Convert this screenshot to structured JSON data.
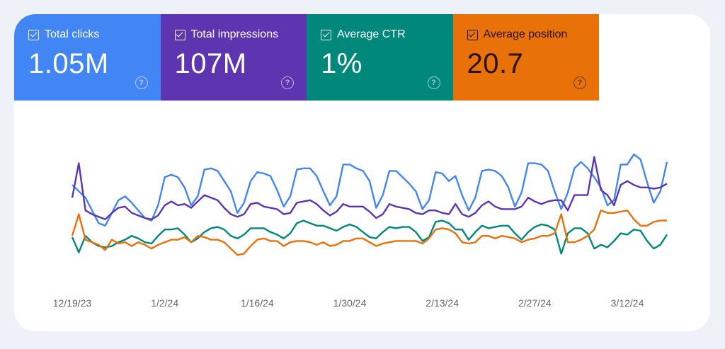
{
  "metrics": [
    {
      "label": "Total clicks",
      "value": "1.05M",
      "color": "#4285f4",
      "text_color": "#ffffff",
      "checked": true
    },
    {
      "label": "Total impressions",
      "value": "107M",
      "color": "#5e35b1",
      "text_color": "#ffffff",
      "checked": true
    },
    {
      "label": "Average CTR",
      "value": "1%",
      "color": "#00897b",
      "text_color": "#ffffff",
      "checked": true
    },
    {
      "label": "Average position",
      "value": "20.7",
      "color": "#e8710a",
      "text_color": "#2a1200",
      "checked": true
    }
  ],
  "help_icon": "?",
  "chart_data": {
    "type": "line",
    "x_tick_labels": [
      "12/19/23",
      "1/2/24",
      "1/16/24",
      "1/30/24",
      "2/13/24",
      "2/27/24",
      "3/12/24"
    ],
    "ylim": [
      0,
      100
    ],
    "grid": false,
    "series": [
      {
        "color": "#4285f4",
        "values": [
          66,
          61,
          56,
          46,
          36,
          34,
          44,
          54,
          57,
          52,
          46,
          40,
          38,
          50,
          72,
          74,
          72,
          64,
          50,
          57,
          78,
          79,
          77,
          69,
          61,
          44,
          52,
          69,
          76,
          75,
          73,
          62,
          49,
          57,
          78,
          79,
          79,
          73,
          61,
          50,
          57,
          82,
          82,
          79,
          77,
          69,
          48,
          58,
          77,
          77,
          72,
          67,
          61,
          47,
          54,
          76,
          75,
          69,
          73,
          58,
          46,
          56,
          77,
          78,
          77,
          73,
          64,
          49,
          60,
          83,
          83,
          82,
          77,
          61,
          47,
          60,
          79,
          84,
          79,
          72,
          64,
          50,
          54,
          82,
          82,
          90,
          86,
          68,
          52,
          61,
          84
        ]
      },
      {
        "color": "#5e35b1",
        "values": [
          56,
          83,
          46,
          43,
          41,
          39,
          44,
          48,
          49,
          44,
          42,
          40,
          39,
          42,
          50,
          53,
          50,
          51,
          48,
          53,
          58,
          56,
          54,
          48,
          43,
          41,
          43,
          51,
          52,
          49,
          48,
          47,
          43,
          44,
          52,
          53,
          54,
          51,
          46,
          42,
          45,
          51,
          49,
          49,
          49,
          45,
          40,
          43,
          51,
          49,
          48,
          47,
          44,
          43,
          46,
          46,
          44,
          43,
          51,
          43,
          41,
          44,
          50,
          53,
          49,
          47,
          47,
          47,
          49,
          56,
          53,
          51,
          53,
          54,
          54,
          46,
          58,
          58,
          58,
          88,
          62,
          58,
          50,
          66,
          69,
          66,
          64,
          64,
          63,
          64,
          67
        ]
      },
      {
        "color": "#00897b",
        "values": [
          25,
          13,
          26,
          21,
          18,
          17,
          18,
          21,
          23,
          26,
          24,
          21,
          20,
          26,
          31,
          31,
          32,
          27,
          21,
          24,
          29,
          32,
          33,
          31,
          26,
          24,
          27,
          32,
          32,
          32,
          29,
          27,
          24,
          28,
          36,
          38,
          36,
          34,
          34,
          32,
          30,
          33,
          35,
          33,
          29,
          25,
          24,
          29,
          33,
          32,
          33,
          33,
          29,
          22,
          25,
          37,
          38,
          36,
          31,
          31,
          23,
          29,
          34,
          32,
          33,
          34,
          34,
          28,
          23,
          29,
          33,
          35,
          34,
          31,
          12,
          28,
          32,
          32,
          28,
          16,
          19,
          17,
          22,
          28,
          27,
          31,
          30,
          22,
          16,
          19,
          27
        ]
      },
      {
        "color": "#e8710a",
        "values": [
          26,
          43,
          23,
          21,
          19,
          15,
          23,
          20,
          21,
          18,
          21,
          19,
          16,
          19,
          21,
          23,
          23,
          25,
          21,
          26,
          25,
          23,
          23,
          21,
          16,
          11,
          12,
          18,
          23,
          24,
          22,
          22,
          18,
          21,
          22,
          22,
          21,
          19,
          21,
          18,
          19,
          22,
          22,
          24,
          24,
          21,
          18,
          20,
          21,
          22,
          22,
          22,
          22,
          20,
          24,
          31,
          32,
          31,
          28,
          21,
          20,
          21,
          26,
          26,
          24,
          26,
          25,
          24,
          21,
          23,
          24,
          26,
          26,
          28,
          43,
          21,
          21,
          23,
          26,
          31,
          46,
          44,
          44,
          45,
          46,
          39,
          34,
          34,
          37,
          38,
          38
        ]
      }
    ]
  }
}
